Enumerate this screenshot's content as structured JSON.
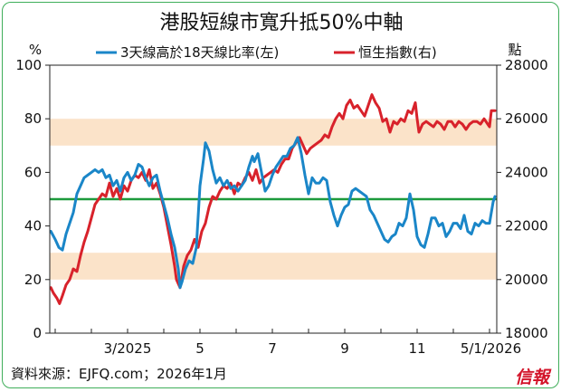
{
  "chart_data": {
    "type": "line",
    "title": "港股短線市寬升抵50%中軸",
    "left_unit": "%",
    "right_unit": "點",
    "ylim_left": [
      0,
      100
    ],
    "ylim_right": [
      18000,
      28000
    ],
    "yticks_left": [
      "0",
      "20",
      "40",
      "60",
      "80",
      "100"
    ],
    "yticks_right": [
      "18000",
      "20000",
      "22000",
      "24000",
      "26000",
      "28000"
    ],
    "x_tick_labels": [
      "3/2025",
      "5",
      "7",
      "9",
      "11",
      "5/1/2026"
    ],
    "x_tick_positions": [
      1.0,
      3.0,
      5.0,
      7.0,
      9.0,
      11.13
    ],
    "xlim": [
      -1.15,
      11.2
    ],
    "reference_line": {
      "axis": "left",
      "value": 50,
      "color": "#1c9a3c"
    },
    "shaded_bands": [
      {
        "axis": "left",
        "from": 70,
        "to": 80,
        "color": "#fbe3c9"
      },
      {
        "axis": "left",
        "from": 20,
        "to": 30,
        "color": "#fbe3c9"
      }
    ],
    "grid": false,
    "series": [
      {
        "name": "3天線高於18天線比率(左)",
        "axis": "left",
        "color": "#1a86c8",
        "points": [
          [
            -1.12,
            38
          ],
          [
            -1.0,
            35
          ],
          [
            -0.9,
            32
          ],
          [
            -0.8,
            31
          ],
          [
            -0.7,
            37
          ],
          [
            -0.6,
            41
          ],
          [
            -0.5,
            45
          ],
          [
            -0.4,
            52
          ],
          [
            -0.3,
            55
          ],
          [
            -0.2,
            58
          ],
          [
            -0.1,
            59
          ],
          [
            0.0,
            60
          ],
          [
            0.1,
            61
          ],
          [
            0.2,
            60
          ],
          [
            0.3,
            61
          ],
          [
            0.4,
            58
          ],
          [
            0.5,
            59
          ],
          [
            0.6,
            55
          ],
          [
            0.7,
            57
          ],
          [
            0.8,
            53
          ],
          [
            0.9,
            58
          ],
          [
            1.0,
            60
          ],
          [
            1.1,
            57
          ],
          [
            1.2,
            59
          ],
          [
            1.3,
            63
          ],
          [
            1.4,
            62
          ],
          [
            1.5,
            58
          ],
          [
            1.6,
            55
          ],
          [
            1.7,
            58
          ],
          [
            1.8,
            59
          ],
          [
            1.9,
            53
          ],
          [
            2.0,
            48
          ],
          [
            2.1,
            43
          ],
          [
            2.2,
            37
          ],
          [
            2.3,
            32
          ],
          [
            2.4,
            24
          ],
          [
            2.45,
            17
          ],
          [
            2.5,
            19
          ],
          [
            2.6,
            24
          ],
          [
            2.7,
            27
          ],
          [
            2.8,
            26
          ],
          [
            2.9,
            32
          ],
          [
            3.0,
            55
          ],
          [
            3.1,
            65
          ],
          [
            3.15,
            71
          ],
          [
            3.25,
            68
          ],
          [
            3.35,
            61
          ],
          [
            3.45,
            56
          ],
          [
            3.55,
            58
          ],
          [
            3.65,
            55
          ],
          [
            3.75,
            57
          ],
          [
            3.85,
            54
          ],
          [
            3.95,
            55
          ],
          [
            4.05,
            53
          ],
          [
            4.15,
            55
          ],
          [
            4.25,
            57
          ],
          [
            4.35,
            62
          ],
          [
            4.45,
            66
          ],
          [
            4.5,
            64
          ],
          [
            4.6,
            67
          ],
          [
            4.7,
            60
          ],
          [
            4.8,
            53
          ],
          [
            4.9,
            55
          ],
          [
            5.0,
            59
          ],
          [
            5.1,
            62
          ],
          [
            5.2,
            64
          ],
          [
            5.3,
            66
          ],
          [
            5.4,
            66
          ],
          [
            5.5,
            69
          ],
          [
            5.6,
            70
          ],
          [
            5.7,
            73
          ],
          [
            5.8,
            67
          ],
          [
            5.9,
            59
          ],
          [
            6.0,
            52
          ],
          [
            6.1,
            58
          ],
          [
            6.2,
            56
          ],
          [
            6.3,
            56
          ],
          [
            6.4,
            58
          ],
          [
            6.5,
            57
          ],
          [
            6.6,
            49
          ],
          [
            6.7,
            44
          ],
          [
            6.8,
            40
          ],
          [
            6.9,
            44
          ],
          [
            7.0,
            47
          ],
          [
            7.1,
            48
          ],
          [
            7.2,
            53
          ],
          [
            7.3,
            54
          ],
          [
            7.4,
            53
          ],
          [
            7.5,
            52
          ],
          [
            7.6,
            51
          ],
          [
            7.7,
            46
          ],
          [
            7.8,
            44
          ],
          [
            7.9,
            41
          ],
          [
            8.0,
            38
          ],
          [
            8.1,
            35
          ],
          [
            8.2,
            34
          ],
          [
            8.3,
            36
          ],
          [
            8.4,
            37
          ],
          [
            8.5,
            41
          ],
          [
            8.6,
            40
          ],
          [
            8.7,
            43
          ],
          [
            8.8,
            52
          ],
          [
            8.9,
            46
          ],
          [
            9.0,
            36
          ],
          [
            9.1,
            33
          ],
          [
            9.2,
            32
          ],
          [
            9.3,
            37
          ],
          [
            9.4,
            43
          ],
          [
            9.5,
            43
          ],
          [
            9.6,
            40
          ],
          [
            9.7,
            41
          ],
          [
            9.8,
            36
          ],
          [
            9.9,
            38
          ],
          [
            10.0,
            41
          ],
          [
            10.1,
            41
          ],
          [
            10.2,
            39
          ],
          [
            10.3,
            44
          ],
          [
            10.4,
            38
          ],
          [
            10.5,
            37
          ],
          [
            10.6,
            41
          ],
          [
            10.7,
            40
          ],
          [
            10.8,
            42
          ],
          [
            10.9,
            41
          ],
          [
            11.0,
            41
          ],
          [
            11.05,
            45
          ],
          [
            11.1,
            49
          ],
          [
            11.15,
            51
          ]
        ]
      },
      {
        "name": "恒生指數(右)",
        "axis": "right",
        "color": "#d8222b",
        "points": [
          [
            -1.12,
            19700
          ],
          [
            -1.05,
            19500
          ],
          [
            -0.95,
            19300
          ],
          [
            -0.88,
            19100
          ],
          [
            -0.8,
            19400
          ],
          [
            -0.7,
            19800
          ],
          [
            -0.6,
            20000
          ],
          [
            -0.5,
            20400
          ],
          [
            -0.4,
            20300
          ],
          [
            -0.3,
            20900
          ],
          [
            -0.2,
            21400
          ],
          [
            -0.1,
            21800
          ],
          [
            0.0,
            22300
          ],
          [
            0.1,
            22800
          ],
          [
            0.2,
            23000
          ],
          [
            0.3,
            23200
          ],
          [
            0.4,
            23100
          ],
          [
            0.5,
            23600
          ],
          [
            0.6,
            23100
          ],
          [
            0.7,
            23400
          ],
          [
            0.8,
            23000
          ],
          [
            0.9,
            23500
          ],
          [
            1.0,
            23300
          ],
          [
            1.1,
            23700
          ],
          [
            1.2,
            23900
          ],
          [
            1.3,
            23800
          ],
          [
            1.4,
            24000
          ],
          [
            1.5,
            23700
          ],
          [
            1.6,
            24100
          ],
          [
            1.7,
            23400
          ],
          [
            1.8,
            23600
          ],
          [
            1.9,
            23200
          ],
          [
            2.0,
            22700
          ],
          [
            2.1,
            22000
          ],
          [
            2.2,
            21300
          ],
          [
            2.3,
            20500
          ],
          [
            2.35,
            20000
          ],
          [
            2.45,
            19700
          ],
          [
            2.55,
            20500
          ],
          [
            2.65,
            20900
          ],
          [
            2.75,
            21100
          ],
          [
            2.85,
            21500
          ],
          [
            2.95,
            21200
          ],
          [
            3.05,
            21800
          ],
          [
            3.15,
            22100
          ],
          [
            3.25,
            22700
          ],
          [
            3.35,
            23100
          ],
          [
            3.45,
            23000
          ],
          [
            3.55,
            23300
          ],
          [
            3.65,
            23500
          ],
          [
            3.75,
            23400
          ],
          [
            3.85,
            23600
          ],
          [
            3.95,
            23200
          ],
          [
            4.05,
            23600
          ],
          [
            4.15,
            23500
          ],
          [
            4.25,
            23800
          ],
          [
            4.35,
            24000
          ],
          [
            4.45,
            23700
          ],
          [
            4.55,
            24100
          ],
          [
            4.65,
            23600
          ],
          [
            4.75,
            23800
          ],
          [
            4.85,
            23900
          ],
          [
            4.95,
            24000
          ],
          [
            5.05,
            24100
          ],
          [
            5.15,
            24000
          ],
          [
            5.25,
            24300
          ],
          [
            5.35,
            24500
          ],
          [
            5.45,
            24500
          ],
          [
            5.55,
            24900
          ],
          [
            5.65,
            25100
          ],
          [
            5.75,
            25300
          ],
          [
            5.85,
            25000
          ],
          [
            5.95,
            24700
          ],
          [
            6.05,
            24900
          ],
          [
            6.15,
            25000
          ],
          [
            6.25,
            25100
          ],
          [
            6.35,
            25200
          ],
          [
            6.45,
            25400
          ],
          [
            6.55,
            25300
          ],
          [
            6.65,
            25700
          ],
          [
            6.75,
            26000
          ],
          [
            6.85,
            26200
          ],
          [
            6.95,
            26000
          ],
          [
            7.05,
            26500
          ],
          [
            7.15,
            26700
          ],
          [
            7.25,
            26400
          ],
          [
            7.35,
            26500
          ],
          [
            7.45,
            26300
          ],
          [
            7.55,
            26100
          ],
          [
            7.65,
            26500
          ],
          [
            7.75,
            26900
          ],
          [
            7.85,
            26600
          ],
          [
            7.95,
            26400
          ],
          [
            8.05,
            25900
          ],
          [
            8.15,
            26000
          ],
          [
            8.25,
            25500
          ],
          [
            8.35,
            25900
          ],
          [
            8.45,
            25800
          ],
          [
            8.55,
            26000
          ],
          [
            8.65,
            25900
          ],
          [
            8.75,
            26300
          ],
          [
            8.85,
            26200
          ],
          [
            8.95,
            26600
          ],
          [
            9.0,
            26000
          ],
          [
            9.05,
            25500
          ],
          [
            9.15,
            25800
          ],
          [
            9.25,
            25900
          ],
          [
            9.35,
            25800
          ],
          [
            9.45,
            25700
          ],
          [
            9.55,
            25900
          ],
          [
            9.65,
            25800
          ],
          [
            9.75,
            25600
          ],
          [
            9.85,
            25900
          ],
          [
            9.95,
            25900
          ],
          [
            10.05,
            25700
          ],
          [
            10.15,
            25900
          ],
          [
            10.25,
            25800
          ],
          [
            10.35,
            25600
          ],
          [
            10.45,
            25800
          ],
          [
            10.55,
            25900
          ],
          [
            10.65,
            25900
          ],
          [
            10.75,
            25800
          ],
          [
            10.85,
            26000
          ],
          [
            10.95,
            25800
          ],
          [
            11.0,
            25700
          ],
          [
            11.05,
            26300
          ],
          [
            11.15,
            26300
          ]
        ]
      }
    ]
  },
  "source": "資料來源：EJFQ.com；2026年1月",
  "logo": "信報"
}
